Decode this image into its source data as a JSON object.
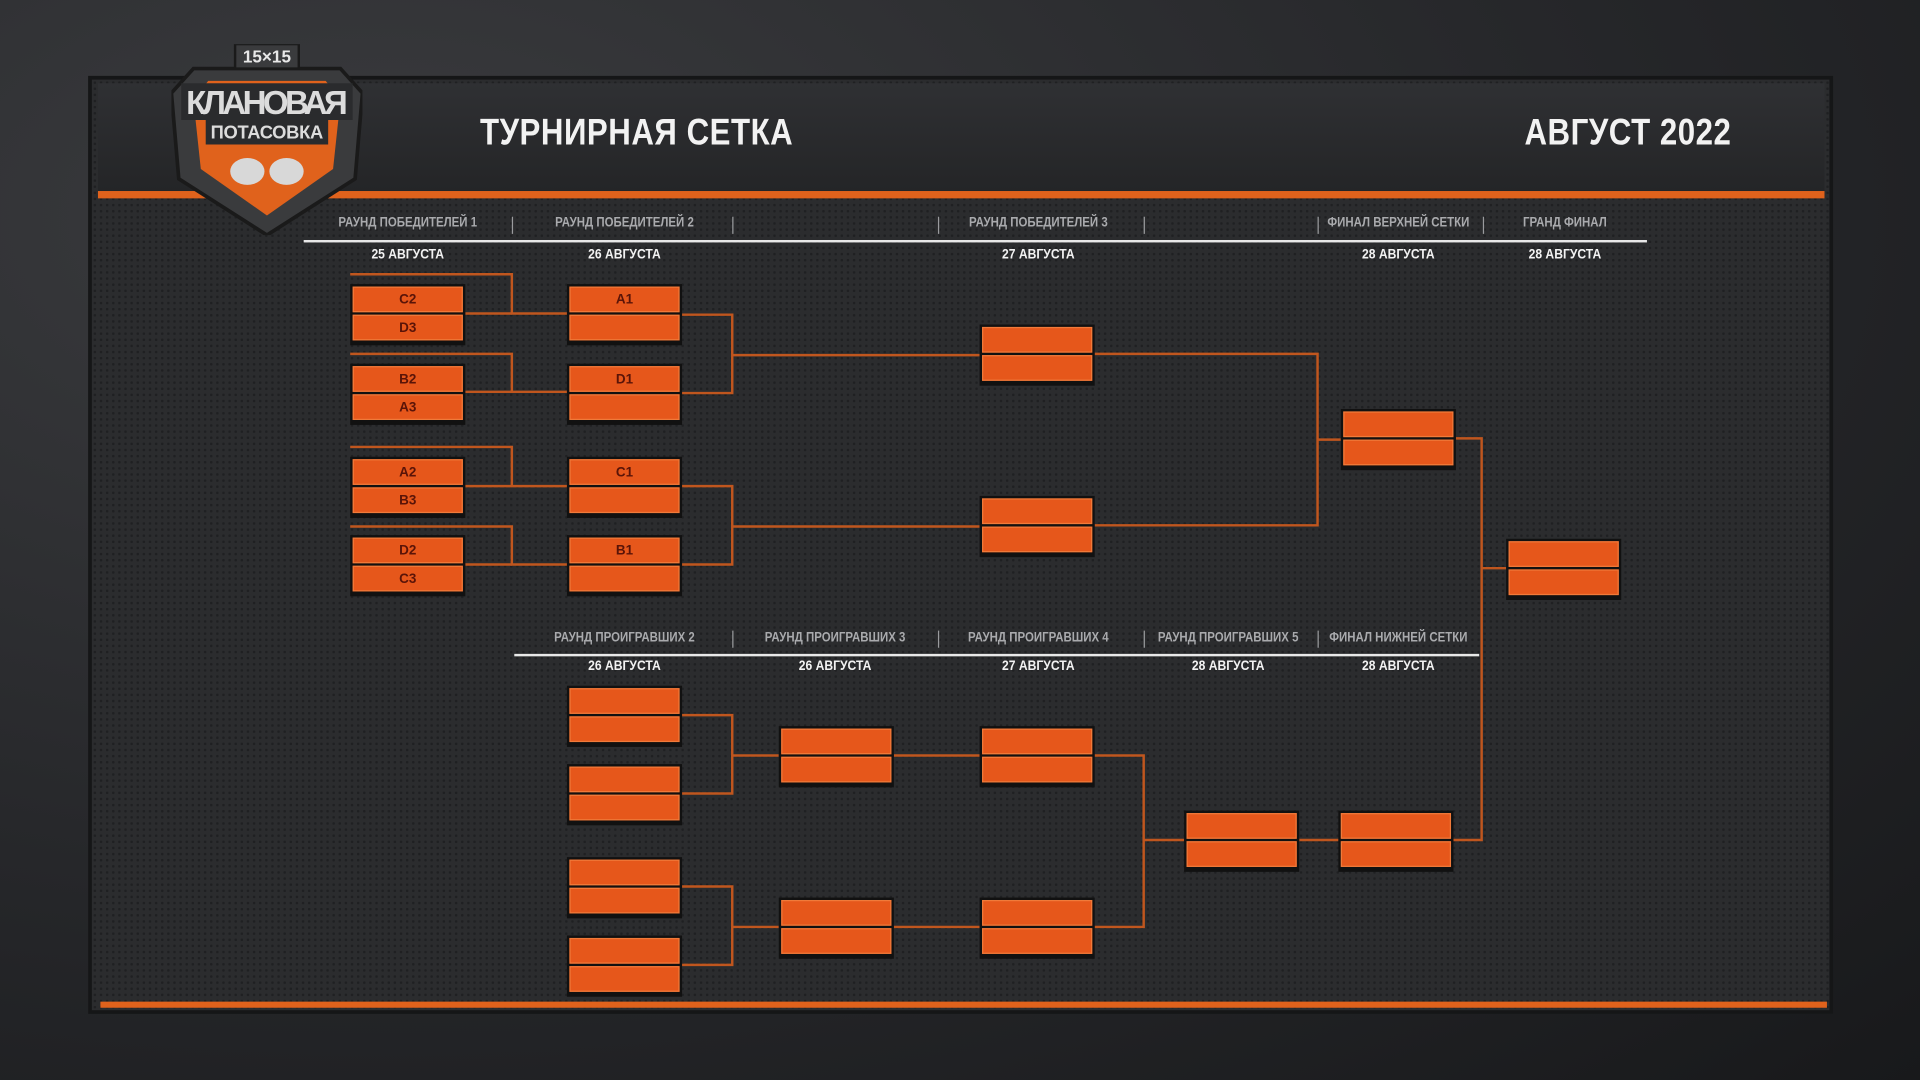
{
  "logo": {
    "badge": "15x15",
    "line1": "КЛАНОВАЯ",
    "line2": "ПОТАСОВКА"
  },
  "header": {
    "title": "ТУРНИРНАЯ СЕТКА",
    "month": "АВГУСТ 2022"
  },
  "colors": {
    "accent": "#e0621c",
    "slot": "#e6571b",
    "connector": "#c0561e"
  },
  "upper": {
    "rounds": [
      {
        "label": "РАУНД ПОБЕДИТЕЛЕЙ 1",
        "date": "25 АВГУСТА"
      },
      {
        "label": "РАУНД ПОБЕДИТЕЛЕЙ 2",
        "date": "26 АВГУСТА"
      },
      {
        "label": "РАУНД ПОБЕДИТЕЛЕЙ 3",
        "date": "27 АВГУСТА"
      },
      {
        "label": "ФИНАЛ ВЕРХНЕЙ СЕТКИ",
        "date": "28 АВГУСТА"
      },
      {
        "label": "ГРАНД ФИНАЛ",
        "date": "28 АВГУСТА"
      }
    ]
  },
  "lower": {
    "rounds": [
      {
        "label": "РАУНД ПРОИГРАВШИХ 2",
        "date": "26 АВГУСТА"
      },
      {
        "label": "РАУНД ПРОИГРАВШИХ 3",
        "date": "26 АВГУСТА"
      },
      {
        "label": "РАУНД ПРОИГРАВШИХ 4",
        "date": "27 АВГУСТА"
      },
      {
        "label": "РАУНД ПРОИГРАВШИХ 5",
        "date": "28 АВГУСТА"
      },
      {
        "label": "ФИНАЛ НИЖНЕЙ СЕТКИ",
        "date": "28 АВГУСТА"
      }
    ]
  },
  "matches": {
    "wr1": [
      [
        "C2",
        "D3"
      ],
      [
        "B2",
        "A3"
      ],
      [
        "A2",
        "B3"
      ],
      [
        "D2",
        "C3"
      ]
    ],
    "wr2": [
      [
        "A1",
        ""
      ],
      [
        "D1",
        ""
      ],
      [
        "C1",
        ""
      ],
      [
        "B1",
        ""
      ]
    ],
    "wr3": [
      [
        "",
        ""
      ],
      [
        "",
        ""
      ]
    ],
    "wf": [
      [
        "",
        ""
      ]
    ],
    "gf": [
      [
        "",
        ""
      ]
    ],
    "lr2": [
      [
        "",
        ""
      ],
      [
        "",
        ""
      ],
      [
        "",
        ""
      ],
      [
        "",
        ""
      ]
    ],
    "lr3": [
      [
        "",
        ""
      ],
      [
        "",
        ""
      ]
    ],
    "lr4": [
      [
        "",
        ""
      ],
      [
        "",
        ""
      ]
    ],
    "lr5": [
      [
        "",
        ""
      ]
    ],
    "lf": [
      [
        "",
        ""
      ]
    ]
  }
}
